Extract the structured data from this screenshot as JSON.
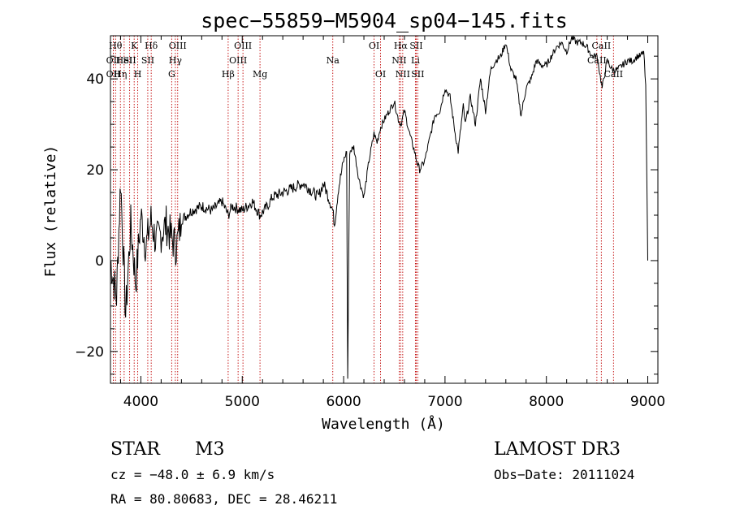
{
  "chart_data": {
    "type": "line",
    "title": "spec−55859−M5904_sp04−145.fits",
    "xlabel": "Wavelength (Å)",
    "ylabel": "Flux (relative)",
    "xlim": [
      3700,
      9100
    ],
    "ylim": [
      -27,
      49.5
    ],
    "xticks": [
      {
        "v": 4000,
        "label": "4000"
      },
      {
        "v": 5000,
        "label": "5000"
      },
      {
        "v": 6000,
        "label": "6000"
      },
      {
        "v": 7000,
        "label": "7000"
      },
      {
        "v": 8000,
        "label": "8000"
      },
      {
        "v": 9000,
        "label": "9000"
      }
    ],
    "yticks": [
      {
        "v": -20,
        "label": "−20"
      },
      {
        "v": 0,
        "label": "0"
      },
      {
        "v": 20,
        "label": "20"
      },
      {
        "v": 40,
        "label": "40"
      }
    ],
    "series": [
      {
        "name": "spectrum",
        "x": [
          3700,
          3760,
          3800,
          3850,
          3900,
          3950,
          4000,
          4050,
          4100,
          4150,
          4200,
          4250,
          4300,
          4350,
          4400,
          4500,
          4600,
          4700,
          4800,
          4862,
          4900,
          5000,
          5100,
          5175,
          5250,
          5300,
          5400,
          5500,
          5600,
          5700,
          5750,
          5800,
          5850,
          5893,
          5910,
          5950,
          6000,
          6030,
          6040,
          6060,
          6100,
          6150,
          6200,
          6250,
          6300,
          6330,
          6360,
          6400,
          6450,
          6500,
          6540,
          6565,
          6600,
          6650,
          6700,
          6720,
          6750,
          6800,
          6850,
          6900,
          6950,
          7000,
          7050,
          7100,
          7130,
          7150,
          7180,
          7200,
          7250,
          7300,
          7350,
          7400,
          7450,
          7500,
          7550,
          7600,
          7650,
          7700,
          7750,
          7800,
          7850,
          7900,
          7950,
          8000,
          8050,
          8100,
          8150,
          8200,
          8250,
          8300,
          8350,
          8400,
          8450,
          8500,
          8550,
          8600,
          8650,
          8700,
          8750,
          8800,
          8850,
          8900,
          8930,
          8960,
          8980,
          9000
        ],
        "y": [
          0,
          -8,
          18,
          -12,
          8,
          -5,
          10,
          3,
          9,
          4,
          6,
          8,
          5,
          3,
          9,
          11,
          12,
          11,
          13,
          10,
          12,
          11,
          13,
          10,
          12,
          14,
          15,
          16,
          17,
          15,
          14,
          17,
          14,
          11,
          8,
          16,
          22,
          24,
          -26,
          24,
          25,
          18,
          14,
          22,
          28,
          26,
          29,
          31,
          33,
          35,
          31,
          30,
          33,
          28,
          24,
          22,
          20,
          22,
          27,
          32,
          33,
          38,
          36,
          28,
          24,
          28,
          34,
          30,
          36,
          30,
          40,
          33,
          42,
          44,
          45,
          48,
          42,
          40,
          32,
          38,
          40,
          44,
          43,
          43,
          45,
          47,
          48,
          46,
          49,
          48,
          48,
          47,
          45,
          45,
          38,
          44,
          42,
          42,
          43,
          44,
          44,
          45,
          45,
          46,
          38,
          0
        ]
      }
    ],
    "lines": [
      {
        "x": 3750,
        "label": "Hθ",
        "row": 0
      },
      {
        "x": 3728,
        "label": "OII",
        "row": 1
      },
      {
        "x": 3728,
        "label": "OII",
        "row": 2
      },
      {
        "x": 3798,
        "label": "Hη",
        "row": 2
      },
      {
        "x": 3835,
        "label": "HeI",
        "row": 1
      },
      {
        "x": 3889,
        "label": "SII",
        "row": 1
      },
      {
        "x": 3934,
        "label": "K",
        "row": 0
      },
      {
        "x": 3969,
        "label": "H",
        "row": 2
      },
      {
        "x": 4102,
        "label": "Hδ",
        "row": 0
      },
      {
        "x": 4068,
        "label": "SII",
        "row": 1
      },
      {
        "x": 4363,
        "label": "OIII",
        "row": 0
      },
      {
        "x": 4340,
        "label": "Hγ",
        "row": 1
      },
      {
        "x": 4304,
        "label": "G",
        "row": 2
      },
      {
        "x": 4861,
        "label": "Hβ",
        "row": 2
      },
      {
        "x": 5007,
        "label": "OIII",
        "row": 0
      },
      {
        "x": 4959,
        "label": "OIII",
        "row": 1
      },
      {
        "x": 5175,
        "label": "Mg",
        "row": 2
      },
      {
        "x": 5893,
        "label": "Na",
        "row": 1
      },
      {
        "x": 6300,
        "label": "OI",
        "row": 0
      },
      {
        "x": 6364,
        "label": "OI",
        "row": 2
      },
      {
        "x": 6563,
        "label": "Hα",
        "row": 0
      },
      {
        "x": 6548,
        "label": "NII",
        "row": 1
      },
      {
        "x": 6583,
        "label": "NII",
        "row": 2
      },
      {
        "x": 6716,
        "label": "SII",
        "row": 0
      },
      {
        "x": 6708,
        "label": "Li",
        "row": 1
      },
      {
        "x": 6731,
        "label": "SII",
        "row": 2
      },
      {
        "x": 8542,
        "label": "CaII",
        "row": 0
      },
      {
        "x": 8498,
        "label": "CaII",
        "row": 1
      },
      {
        "x": 8662,
        "label": "CaII",
        "row": 2
      }
    ]
  },
  "info": {
    "object_type": "STAR",
    "subclass": "M3",
    "survey": "LAMOST DR3",
    "cz": "cz = −48.0 ± 6.9 km/s",
    "obs_date": "Obs−Date: 20111024",
    "coords": "RA =  80.80683, DEC =  28.46211"
  }
}
